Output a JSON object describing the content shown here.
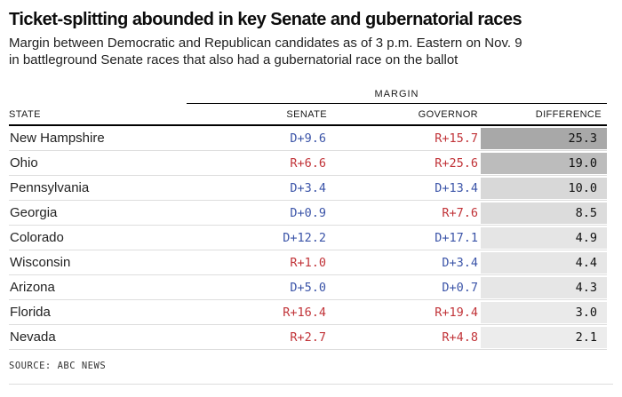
{
  "header": {
    "title": "Ticket-splitting abounded in key Senate and gubernatorial races",
    "subtitle_lines": [
      "Margin between Democratic and Republican candidates as of 3 p.m. Eastern on Nov. 9",
      "in battleground Senate races that also had a gubernatorial race on the ballot"
    ]
  },
  "table": {
    "margin_group_label": "MARGIN",
    "columns": {
      "state": "STATE",
      "senate": "SENATE",
      "governor": "GOVERNOR",
      "difference": "DIFFERENCE"
    },
    "rows": [
      {
        "state": "New Hampshire",
        "senate": "D+9.6",
        "senate_party": "D",
        "governor": "R+15.7",
        "governor_party": "R",
        "difference": "25.3",
        "shade": "#a8a8a8"
      },
      {
        "state": "Ohio",
        "senate": "R+6.6",
        "senate_party": "R",
        "governor": "R+25.6",
        "governor_party": "R",
        "difference": "19.0",
        "shade": "#bcbcbc"
      },
      {
        "state": "Pennsylvania",
        "senate": "D+3.4",
        "senate_party": "D",
        "governor": "D+13.4",
        "governor_party": "D",
        "difference": "10.0",
        "shade": "#d8d8d8"
      },
      {
        "state": "Georgia",
        "senate": "D+0.9",
        "senate_party": "D",
        "governor": "R+7.6",
        "governor_party": "R",
        "difference": "8.5",
        "shade": "#dcdcdc"
      },
      {
        "state": "Colorado",
        "senate": "D+12.2",
        "senate_party": "D",
        "governor": "D+17.1",
        "governor_party": "D",
        "difference": "4.9",
        "shade": "#e5e5e5"
      },
      {
        "state": "Wisconsin",
        "senate": "R+1.0",
        "senate_party": "R",
        "governor": "D+3.4",
        "governor_party": "D",
        "difference": "4.4",
        "shade": "#e6e6e6"
      },
      {
        "state": "Arizona",
        "senate": "D+5.0",
        "senate_party": "D",
        "governor": "D+0.7",
        "governor_party": "D",
        "difference": "4.3",
        "shade": "#e6e6e6"
      },
      {
        "state": "Florida",
        "senate": "R+16.4",
        "senate_party": "R",
        "governor": "R+19.4",
        "governor_party": "R",
        "difference": "3.0",
        "shade": "#eaeaea"
      },
      {
        "state": "Nevada",
        "senate": "R+2.7",
        "senate_party": "R",
        "governor": "R+4.8",
        "governor_party": "R",
        "difference": "2.1",
        "shade": "#ececec"
      }
    ]
  },
  "footer": {
    "source": "SOURCE: ABC NEWS"
  },
  "colors": {
    "dem": "#3b54a8",
    "rep": "#c13338",
    "diff_text": "#111111"
  },
  "chart_data": {
    "type": "table",
    "title": "Ticket-splitting abounded in key Senate and gubernatorial races",
    "subtitle": "Margin between Democratic and Republican candidates as of 3 p.m. Eastern on Nov. 9 in battleground Senate races that also had a gubernatorial race on the ballot",
    "columns": [
      "State",
      "Senate margin",
      "Governor margin",
      "Difference"
    ],
    "rows": [
      [
        "New Hampshire",
        "D+9.6",
        "R+15.7",
        25.3
      ],
      [
        "Ohio",
        "R+6.6",
        "R+25.6",
        19.0
      ],
      [
        "Pennsylvania",
        "D+3.4",
        "D+13.4",
        10.0
      ],
      [
        "Georgia",
        "D+0.9",
        "R+7.6",
        8.5
      ],
      [
        "Colorado",
        "D+12.2",
        "D+17.1",
        4.9
      ],
      [
        "Wisconsin",
        "R+1.0",
        "D+3.4",
        4.4
      ],
      [
        "Arizona",
        "D+5.0",
        "D+0.7",
        4.3
      ],
      [
        "Florida",
        "R+16.4",
        "R+19.4",
        3.0
      ],
      [
        "Nevada",
        "R+2.7",
        "R+4.8",
        2.1
      ]
    ],
    "shading": "Difference column shaded gray, darker = larger difference",
    "source": "ABC News"
  }
}
